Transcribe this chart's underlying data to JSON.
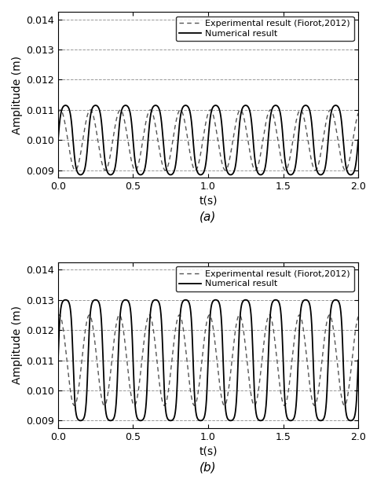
{
  "subplot_a": {
    "exp_mean": 0.01,
    "exp_amp": 0.001,
    "exp_freq": 5.0,
    "exp_phase": 1.1,
    "num_mean": 0.01,
    "num_amp": 0.00115,
    "num_freq": 5.0,
    "num_phase": 0.0,
    "num_skew": 0.5,
    "title": "(a)",
    "ylim": [
      0.00875,
      0.01425
    ],
    "yticks": [
      0.009,
      0.01,
      0.011,
      0.012,
      0.013,
      0.014
    ]
  },
  "subplot_b": {
    "exp_mean": 0.011,
    "exp_amp": 0.0015,
    "exp_freq": 5.0,
    "exp_phase": 1.3,
    "num_mean": 0.011,
    "num_amp": 0.002,
    "num_freq": 5.0,
    "num_phase": 0.0,
    "num_skew": 0.7,
    "title": "(b)",
    "ylim": [
      0.00875,
      0.01425
    ],
    "yticks": [
      0.009,
      0.01,
      0.011,
      0.012,
      0.013,
      0.014
    ]
  },
  "xlim": [
    0,
    2
  ],
  "xticks": [
    0,
    0.5,
    1,
    1.5,
    2
  ],
  "xlabel": "t(s)",
  "ylabel": "Amplitude (m)",
  "exp_label": "Experimental result (Fiorot,2012)",
  "num_label": "Numerical result",
  "exp_color": "#555555",
  "num_color": "#000000",
  "grid_color": "#999999",
  "background_color": "#ffffff"
}
